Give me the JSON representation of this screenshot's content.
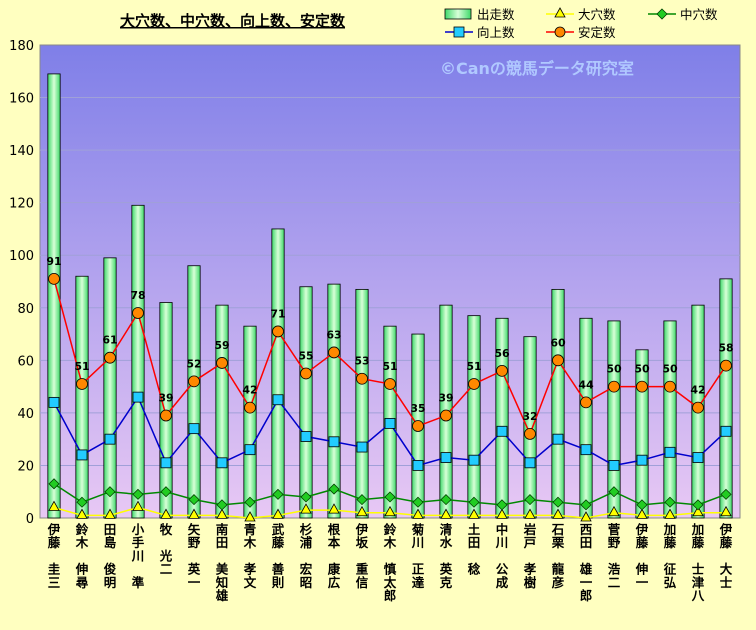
{
  "chart_data": {
    "type": "bar",
    "title": "大穴数、中穴数、向上数、安定数",
    "watermark": "©Canの競馬データ研究室",
    "ylim": [
      0,
      180
    ],
    "yticks": [
      0,
      20,
      40,
      60,
      80,
      100,
      120,
      140,
      160,
      180
    ],
    "grid": true,
    "legend_position": "top-right",
    "categories": [
      "伊藤 圭三",
      "鈴木 伸尋",
      "田島 俊明",
      "小手川 準",
      "牧 光二",
      "矢野 英一",
      "南田 美知雄",
      "青木 孝文",
      "武藤 善則",
      "杉浦 宏昭",
      "根本 康広",
      "伊坂 重信",
      "鈴木 慎太郎",
      "菊川 正達",
      "清水 英克",
      "土田 稔",
      "中川 公成",
      "岩戸 孝樹",
      "石栗 龍彦",
      "西田 雄一郎",
      "菅野 浩二",
      "伊藤 伸一",
      "加藤 征弘",
      "加藤 士津八",
      "伊藤 大士"
    ],
    "series": [
      {
        "name": "出走数",
        "type": "bar",
        "color": "#00cc44",
        "values": [
          169,
          92,
          99,
          119,
          82,
          96,
          81,
          73,
          110,
          88,
          89,
          87,
          73,
          70,
          81,
          77,
          76,
          69,
          87,
          76,
          75,
          64,
          75,
          81,
          91
        ]
      },
      {
        "name": "大穴数",
        "type": "line",
        "color": "#ffff00",
        "values": [
          4,
          1,
          1,
          4,
          1,
          1,
          1,
          0,
          1,
          3,
          3,
          2,
          2,
          1,
          1,
          1,
          1,
          1,
          1,
          0,
          2,
          1,
          1,
          2,
          2
        ]
      },
      {
        "name": "中穴数",
        "type": "line",
        "color": "#008800",
        "values": [
          13,
          6,
          10,
          9,
          10,
          7,
          5,
          6,
          9,
          8,
          11,
          7,
          8,
          6,
          7,
          6,
          5,
          7,
          6,
          5,
          10,
          5,
          6,
          5,
          9
        ]
      },
      {
        "name": "向上数",
        "type": "line",
        "color": "#0000cc",
        "values": [
          44,
          24,
          30,
          46,
          21,
          34,
          21,
          26,
          45,
          31,
          29,
          27,
          36,
          20,
          23,
          22,
          33,
          21,
          30,
          26,
          20,
          22,
          25,
          23,
          33
        ]
      },
      {
        "name": "安定数",
        "type": "line",
        "color": "#ff0000",
        "values": [
          91,
          51,
          61,
          78,
          39,
          52,
          59,
          42,
          71,
          55,
          63,
          53,
          51,
          35,
          39,
          51,
          56,
          32,
          60,
          44,
          50,
          50,
          50,
          42,
          58
        ],
        "labels": [
          91,
          51,
          61,
          78,
          39,
          52,
          59,
          42,
          71,
          55,
          63,
          53,
          51,
          35,
          39,
          51,
          56,
          32,
          60,
          44,
          50,
          50,
          50,
          42,
          58
        ]
      }
    ]
  }
}
